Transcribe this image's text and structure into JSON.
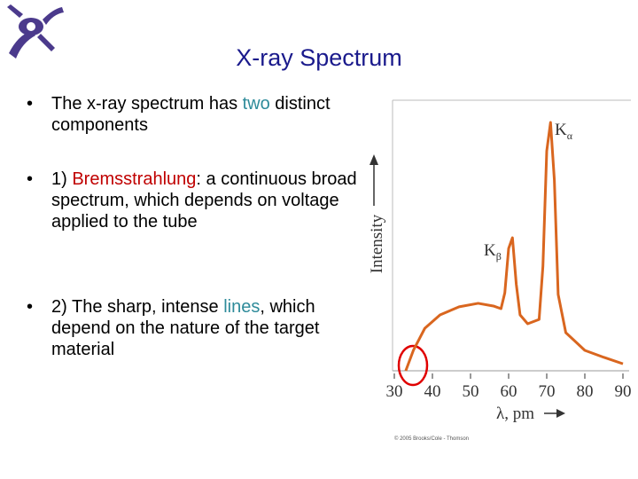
{
  "title": "X-ray Spectrum",
  "bullets": [
    [
      {
        "text": "The x-ray spectrum has "
      },
      {
        "text": "two",
        "color": "#2e8b9a"
      },
      {
        "text": " distinct components"
      }
    ],
    [
      {
        "text": "1) "
      },
      {
        "text": "Bremsstrahlung",
        "color": "#c00000"
      },
      {
        "text": ": a continuous broad spectrum, which depends on voltage applied to the tube"
      }
    ],
    [
      {
        "text": "2) The sharp, intense "
      },
      {
        "text": "lines",
        "color": "#2e8b9a"
      },
      {
        "text": ", which depend on the nature of the target material"
      }
    ]
  ],
  "chart_data": {
    "type": "line",
    "x_label": "λ, pm",
    "y_label": "Intensity",
    "annotations": [
      {
        "text": "K",
        "sub": "α"
      },
      {
        "text": "K",
        "sub": "β"
      }
    ],
    "credit": "© 2005 Brooks/Cole - Thomson",
    "x": [
      33,
      35,
      38,
      42,
      47,
      52,
      56,
      58,
      59,
      60,
      61,
      62,
      63,
      65,
      68,
      69,
      70,
      71,
      72,
      73,
      75,
      80,
      85,
      90
    ],
    "series": [
      {
        "color": "#d9661f",
        "values": [
          0,
          7.6,
          15.8,
          20.8,
          23.8,
          25.1,
          24.1,
          23.1,
          29,
          45.5,
          49.5,
          32.3,
          20.8,
          17.5,
          19.1,
          38.9,
          81.8,
          92.4,
          71,
          28.4,
          14.2,
          7.6,
          5,
          2.6
        ]
      }
    ],
    "xlim": [
      30,
      90
    ],
    "ylim": [
      0,
      100
    ],
    "xticks": [
      30,
      40,
      50,
      60,
      70,
      80,
      90
    ]
  }
}
